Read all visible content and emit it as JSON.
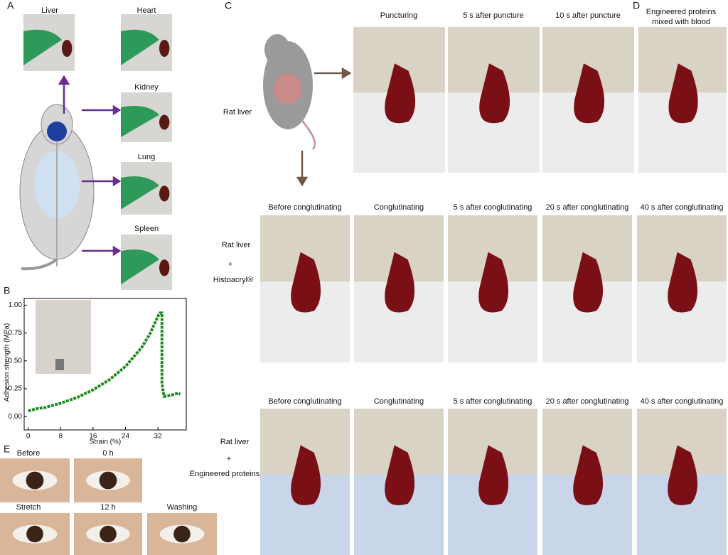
{
  "panel_labels": [
    "A",
    "B",
    "C",
    "D",
    "E"
  ],
  "panel_a": {
    "organs": [
      "Liver",
      "Heart",
      "Kidney",
      "Lung",
      "Spleen"
    ]
  },
  "panel_c": {
    "row1": {
      "label": "Rat liver",
      "titles": [
        "Puncturing",
        "5 s after puncture",
        "10 s after puncture"
      ]
    },
    "row2": {
      "label": "Rat liver",
      "agent": "Histoacryl®",
      "titles": [
        "Before conglutinating",
        "Conglutinating",
        "5 s after conglutinating",
        "20 s after conglutinating",
        "40 s after conglutinating"
      ]
    },
    "row3": {
      "label": "Rat liver",
      "agent": "Engineered proteins",
      "titles": [
        "Before conglutinating",
        "Conglutinating",
        "5 s after conglutinating",
        "20 s after conglutinating",
        "40 s after conglutinating"
      ]
    }
  },
  "panel_d": {
    "title": [
      "Engineered proteins",
      "mixed with blood"
    ]
  },
  "panel_e": {
    "labels": [
      "Before",
      "0 h",
      "Stretch",
      "12 h",
      "Washing"
    ]
  },
  "chart_data": {
    "type": "line",
    "x_label": "Strain (%)",
    "y_label": "Adhesion strength (MPa)",
    "color": "#1f8a1f",
    "x": [
      0,
      2,
      4,
      8,
      12,
      16,
      20,
      24,
      28,
      30,
      32,
      32.5,
      33,
      33,
      33,
      33.5,
      35,
      36,
      37,
      37.5
    ],
    "values": [
      0.05,
      0.07,
      0.08,
      0.12,
      0.17,
      0.24,
      0.33,
      0.45,
      0.62,
      0.74,
      0.9,
      0.93,
      0.93,
      0.6,
      0.3,
      0.18,
      0.19,
      0.2,
      0.21,
      0.2
    ],
    "xlim": [
      -1,
      39
    ],
    "ylim": [
      -0.12,
      1.06
    ],
    "xticks": [
      0,
      8,
      16,
      24,
      32
    ],
    "yticks": [
      {
        "value": 0,
        "label": "0.00"
      },
      {
        "value": 0.25,
        "label": "0.25"
      },
      {
        "value": 0.5,
        "label": "0.50"
      },
      {
        "value": 0.75,
        "label": "0.75"
      },
      {
        "value": 1,
        "label": "1.00"
      }
    ]
  }
}
